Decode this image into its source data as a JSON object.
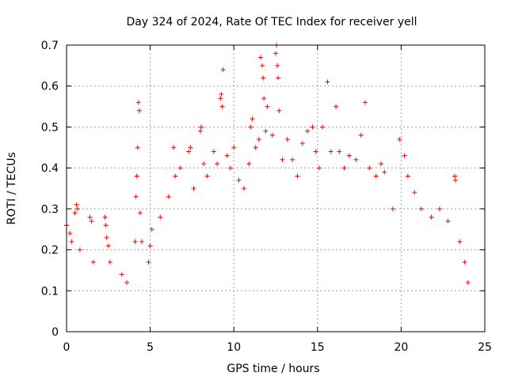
{
  "chart_data": {
    "type": "scatter",
    "title": "Day 324 of 2024, Rate Of TEC Index for receiver yell",
    "xlabel": "GPS time / hours",
    "ylabel": "ROTI / TECUs",
    "xlim": [
      0,
      25
    ],
    "ylim": [
      0,
      0.7
    ],
    "xticks": [
      0,
      5,
      10,
      15,
      20,
      25
    ],
    "yticks": [
      0,
      0.1,
      0.2,
      0.3,
      0.4,
      0.5,
      0.6,
      0.7
    ],
    "xtick_labels": [
      "0",
      "5",
      "10",
      "15",
      "20",
      "25"
    ],
    "ytick_labels": [
      "0",
      "0.1",
      "0.2",
      "0.3",
      "0.4",
      "0.5",
      "0.6",
      "0.7"
    ],
    "grid": true,
    "marker": "+",
    "color": "#ff0000",
    "series": [
      {
        "name": "ROTI",
        "note": "dense red '+' markers from 0 to 24 h; representative sample",
        "points": [
          [
            0.0,
            0.26
          ],
          [
            0.2,
            0.24
          ],
          [
            0.3,
            0.22
          ],
          [
            0.5,
            0.29
          ],
          [
            0.6,
            0.31
          ],
          [
            0.65,
            0.3
          ],
          [
            0.8,
            0.2
          ],
          [
            1.4,
            0.28
          ],
          [
            1.5,
            0.27
          ],
          [
            1.6,
            0.17
          ],
          [
            2.3,
            0.28
          ],
          [
            2.35,
            0.26
          ],
          [
            2.4,
            0.23
          ],
          [
            2.5,
            0.21
          ],
          [
            2.6,
            0.17
          ],
          [
            3.3,
            0.14
          ],
          [
            3.6,
            0.12
          ],
          [
            4.1,
            0.22
          ],
          [
            4.15,
            0.33
          ],
          [
            4.2,
            0.38
          ],
          [
            4.25,
            0.45
          ],
          [
            4.3,
            0.56
          ],
          [
            4.35,
            0.54
          ],
          [
            4.4,
            0.29
          ],
          [
            4.5,
            0.22
          ],
          [
            4.9,
            0.17
          ],
          [
            5.0,
            0.21
          ],
          [
            5.1,
            0.25
          ],
          [
            5.6,
            0.28
          ],
          [
            6.1,
            0.33
          ],
          [
            6.4,
            0.45
          ],
          [
            6.5,
            0.38
          ],
          [
            6.8,
            0.4
          ],
          [
            7.3,
            0.44
          ],
          [
            7.4,
            0.45
          ],
          [
            7.6,
            0.35
          ],
          [
            8.0,
            0.49
          ],
          [
            8.05,
            0.5
          ],
          [
            8.2,
            0.41
          ],
          [
            8.4,
            0.38
          ],
          [
            8.8,
            0.44
          ],
          [
            9.0,
            0.41
          ],
          [
            9.2,
            0.57
          ],
          [
            9.25,
            0.58
          ],
          [
            9.3,
            0.55
          ],
          [
            9.35,
            0.64
          ],
          [
            9.6,
            0.43
          ],
          [
            9.8,
            0.4
          ],
          [
            10.0,
            0.45
          ],
          [
            10.3,
            0.37
          ],
          [
            10.6,
            0.35
          ],
          [
            10.9,
            0.41
          ],
          [
            11.0,
            0.5
          ],
          [
            11.1,
            0.52
          ],
          [
            11.3,
            0.45
          ],
          [
            11.5,
            0.47
          ],
          [
            11.6,
            0.67
          ],
          [
            11.7,
            0.65
          ],
          [
            11.75,
            0.62
          ],
          [
            11.8,
            0.57
          ],
          [
            11.9,
            0.49
          ],
          [
            12.0,
            0.55
          ],
          [
            12.3,
            0.48
          ],
          [
            12.5,
            0.68
          ],
          [
            12.55,
            0.7
          ],
          [
            12.6,
            0.65
          ],
          [
            12.65,
            0.62
          ],
          [
            12.7,
            0.54
          ],
          [
            12.9,
            0.42
          ],
          [
            13.2,
            0.47
          ],
          [
            13.5,
            0.42
          ],
          [
            13.8,
            0.38
          ],
          [
            14.1,
            0.46
          ],
          [
            14.4,
            0.49
          ],
          [
            14.7,
            0.5
          ],
          [
            14.9,
            0.44
          ],
          [
            15.1,
            0.4
          ],
          [
            15.3,
            0.5
          ],
          [
            15.6,
            0.61
          ],
          [
            15.8,
            0.44
          ],
          [
            16.1,
            0.55
          ],
          [
            16.3,
            0.44
          ],
          [
            16.6,
            0.4
          ],
          [
            16.9,
            0.43
          ],
          [
            17.3,
            0.42
          ],
          [
            17.6,
            0.48
          ],
          [
            17.85,
            0.56
          ],
          [
            18.1,
            0.4
          ],
          [
            18.5,
            0.38
          ],
          [
            18.8,
            0.41
          ],
          [
            19.0,
            0.39
          ],
          [
            19.5,
            0.3
          ],
          [
            19.9,
            0.47
          ],
          [
            20.2,
            0.43
          ],
          [
            20.4,
            0.38
          ],
          [
            20.8,
            0.34
          ],
          [
            21.2,
            0.3
          ],
          [
            21.8,
            0.28
          ],
          [
            22.3,
            0.3
          ],
          [
            22.8,
            0.27
          ],
          [
            23.2,
            0.38
          ],
          [
            23.25,
            0.37
          ],
          [
            23.5,
            0.22
          ],
          [
            23.8,
            0.17
          ],
          [
            24.0,
            0.12
          ]
        ]
      }
    ]
  }
}
